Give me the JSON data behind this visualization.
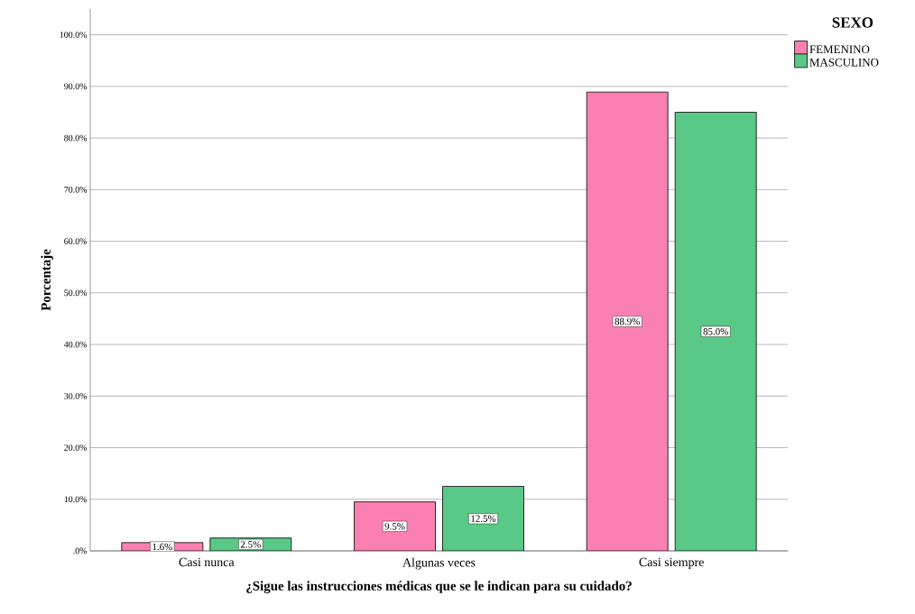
{
  "chart_data": {
    "type": "bar",
    "xlabel": "¿Sigue las instrucciones médicas que se le indican para su cuidado?",
    "ylabel": "Porcentaje",
    "legend_title": "SEXO",
    "categories": [
      "Casi nunca",
      "Algunas veces",
      "Casi siempre"
    ],
    "series": [
      {
        "name": "FEMENINO",
        "color": "#fa80b2",
        "values": [
          1.6,
          9.5,
          88.9
        ],
        "value_labels": [
          "1.6%",
          "9.5%",
          "88.9%"
        ]
      },
      {
        "name": "MASCULINO",
        "color": "#5ac887",
        "values": [
          2.5,
          12.5,
          85.0
        ],
        "value_labels": [
          "2.5%",
          "12.5%",
          "85.0%"
        ]
      }
    ],
    "ylim": [
      0,
      105
    ],
    "yticks": [
      {
        "value": 0,
        "label": ".0%"
      },
      {
        "value": 10,
        "label": "10.0%"
      },
      {
        "value": 20,
        "label": "20.0%"
      },
      {
        "value": 30,
        "label": "30.0%"
      },
      {
        "value": 40,
        "label": "40.0%"
      },
      {
        "value": 50,
        "label": "50.0%"
      },
      {
        "value": 60,
        "label": "60.0%"
      },
      {
        "value": 70,
        "label": "70.0%"
      },
      {
        "value": 80,
        "label": "80.0%"
      },
      {
        "value": 90,
        "label": "90.0%"
      },
      {
        "value": 100,
        "label": "100.0%"
      }
    ],
    "grid": "y",
    "legend": "top right"
  }
}
